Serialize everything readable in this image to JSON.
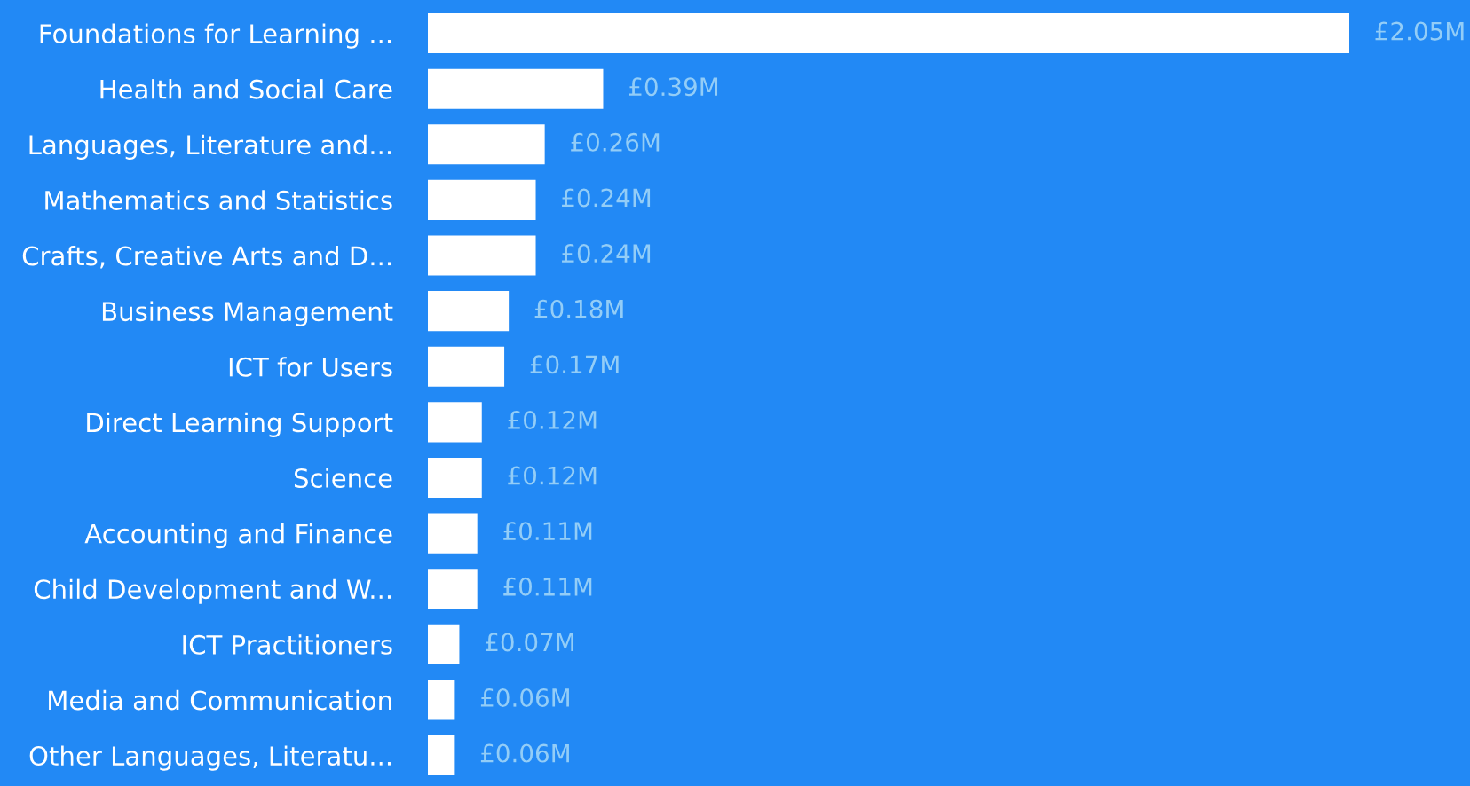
{
  "chart_data": {
    "type": "bar",
    "orientation": "horizontal",
    "categories": [
      "Foundations for Learning ...",
      "Health and Social Care",
      "Languages, Literature and...",
      "Mathematics and Statistics",
      "Crafts, Creative Arts and D...",
      "Business Management",
      "ICT for Users",
      "Direct Learning Support",
      "Science",
      "Accounting and Finance",
      "Child Development and W...",
      "ICT Practitioners",
      "Media and Communication",
      "Other Languages, Literatu..."
    ],
    "values": [
      2.05,
      0.39,
      0.26,
      0.24,
      0.24,
      0.18,
      0.17,
      0.12,
      0.12,
      0.11,
      0.11,
      0.07,
      0.06,
      0.06
    ],
    "value_labels": [
      "£2.05M",
      "£0.39M",
      "£0.26M",
      "£0.24M",
      "£0.24M",
      "£0.18M",
      "£0.17M",
      "£0.12M",
      "£0.12M",
      "£0.11M",
      "£0.11M",
      "£0.07M",
      "£0.06M",
      "£0.06M"
    ],
    "color": "#ffffff",
    "grid": false,
    "legend": false
  }
}
